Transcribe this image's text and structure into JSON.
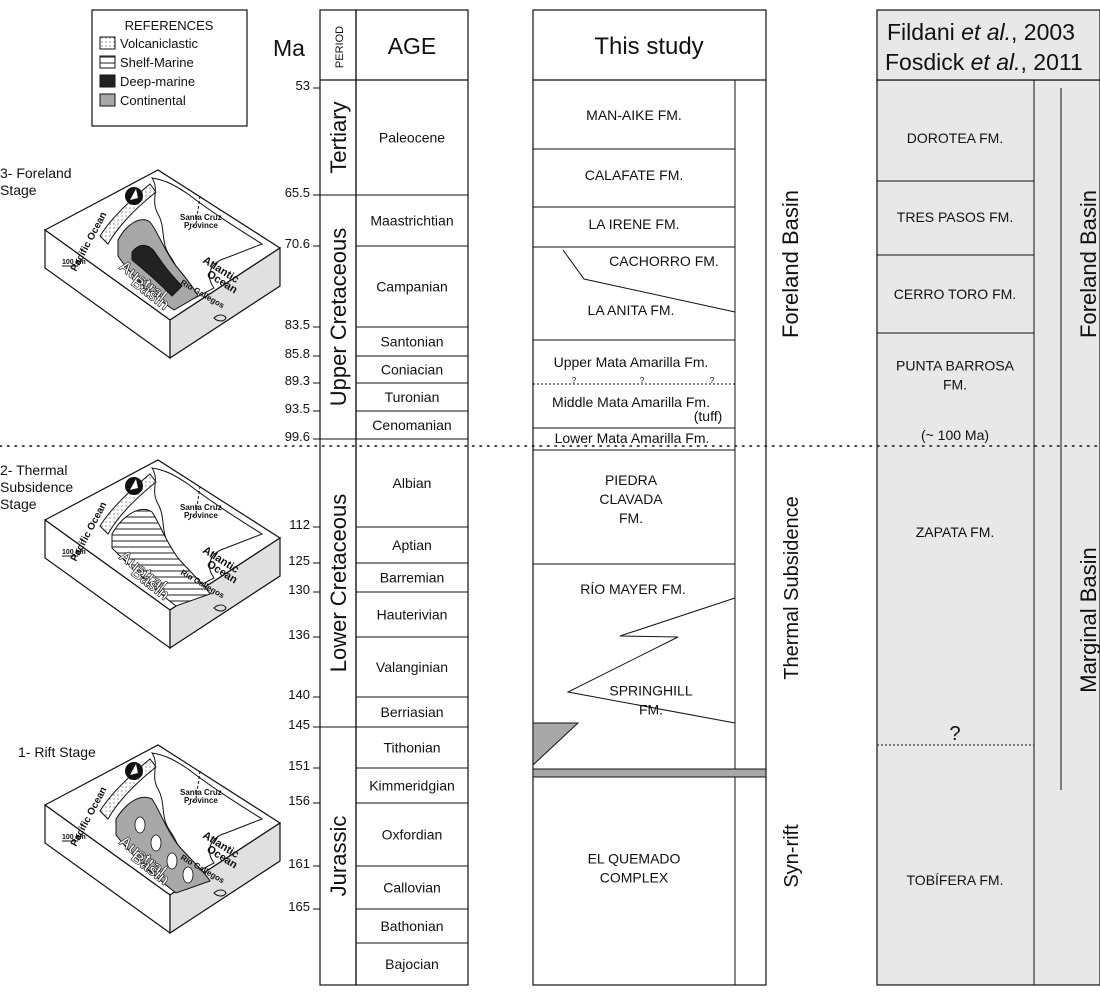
{
  "references": {
    "title": "REFERENCES",
    "items": [
      {
        "label": "Volcaniclastic",
        "key": "volcaniclastic"
      },
      {
        "label": "Shelf-Marine",
        "key": "shelf"
      },
      {
        "label": "Deep-marine",
        "key": "deep"
      },
      {
        "label": "Continental",
        "key": "continental"
      }
    ]
  },
  "stages": [
    {
      "label_lines": [
        "3- Foreland",
        "Stage"
      ],
      "pattern": "foreland"
    },
    {
      "label_lines": [
        "2- Thermal",
        "Subsidence",
        "Stage"
      ],
      "pattern": "thermal"
    },
    {
      "label_lines": [
        "1- Rift Stage"
      ],
      "pattern": "rift"
    }
  ],
  "map_labels": {
    "pacific": "Pacific Ocean",
    "atlantic_1": "Atlantic",
    "atlantic_2": "Ocean",
    "santa_cruz_1": "Santa Cruz",
    "santa_cruz_2": "Province",
    "rio_gallegos": "Río Gallegos",
    "austral_1": "Austral",
    "austral_2": "Basin",
    "scale": "100 km"
  },
  "column_headers": {
    "ma": "Ma",
    "period": "PERIOD",
    "age": "AGE",
    "this_study": "This study",
    "ref_line1_a": "Fildani ",
    "ref_line1_b": "et al.",
    "ref_line1_c": ", 2003",
    "ref_line2_a": "Fosdick ",
    "ref_line2_b": "et al.",
    "ref_line2_c": ", 2011"
  },
  "ma_ticks": [
    {
      "label": "53",
      "ma": 53
    },
    {
      "label": "65.5",
      "ma": 65.5
    },
    {
      "label": "70.6",
      "ma": 70.6
    },
    {
      "label": "83.5",
      "ma": 83.5
    },
    {
      "label": "85.8",
      "ma": 85.8
    },
    {
      "label": "89.3",
      "ma": 89.3
    },
    {
      "label": "93.5",
      "ma": 93.5
    },
    {
      "label": "99.6",
      "ma": 99.6
    },
    {
      "label": "112",
      "ma": 112
    },
    {
      "label": "125",
      "ma": 125
    },
    {
      "label": "130",
      "ma": 130
    },
    {
      "label": "136",
      "ma": 136
    },
    {
      "label": "140",
      "ma": 140
    },
    {
      "label": "145",
      "ma": 145
    },
    {
      "label": "151",
      "ma": 151
    },
    {
      "label": "156",
      "ma": 156
    },
    {
      "label": "161",
      "ma": 161
    },
    {
      "label": "165",
      "ma": 165
    }
  ],
  "periods": [
    {
      "label": "Tertiary",
      "from": "Paleocene",
      "to": "Paleocene"
    },
    {
      "label": "Upper Cretaceous",
      "from": "Maastrichtian",
      "to": "Cenomanian"
    },
    {
      "label": "Lower Cretaceous",
      "from": "Albian",
      "to": "Berriasian"
    },
    {
      "label": "Jurassic",
      "from": "Tithonian",
      "to": "Bajocian"
    }
  ],
  "ages": [
    {
      "label": "Paleocene"
    },
    {
      "label": "Maastrichtian"
    },
    {
      "label": "Campanian"
    },
    {
      "label": "Santonian"
    },
    {
      "label": "Coniacian"
    },
    {
      "label": "Turonian"
    },
    {
      "label": "Cenomanian"
    },
    {
      "label": "Albian"
    },
    {
      "label": "Aptian"
    },
    {
      "label": "Barremian"
    },
    {
      "label": "Hauterivian"
    },
    {
      "label": "Valanginian"
    },
    {
      "label": "Berriasian"
    },
    {
      "label": "Tithonian"
    },
    {
      "label": "Kimmeridgian"
    },
    {
      "label": "Oxfordian"
    },
    {
      "label": "Callovian"
    },
    {
      "label": "Bathonian"
    },
    {
      "label": "Bajocian"
    }
  ],
  "this_study": {
    "formations": [
      {
        "lines": [
          "MAN-AIKE FM."
        ]
      },
      {
        "lines": [
          "CALAFATE FM."
        ]
      },
      {
        "lines": [
          "LA IRENE FM."
        ]
      },
      {
        "lines": [
          "CACHORRO FM."
        ]
      },
      {
        "lines": [
          "LA ANITA FM."
        ]
      },
      {
        "lines": [
          "Upper Mata Amarilla Fm."
        ]
      },
      {
        "lines": [
          "Middle Mata Amarilla Fm."
        ]
      },
      {
        "lines": [
          "(tuff)"
        ]
      },
      {
        "lines": [
          "Lower Mata Amarilla Fm."
        ]
      },
      {
        "lines": [
          "PIEDRA",
          "CLAVADA",
          "FM."
        ]
      },
      {
        "lines": [
          "RÍO MAYER FM."
        ]
      },
      {
        "lines": [
          "SPRINGHILL",
          "FM."
        ]
      },
      {
        "lines": [
          "EL QUEMADO",
          "COMPLEX"
        ]
      }
    ],
    "question_marks": [
      "?",
      "?",
      "?"
    ],
    "stage_labels": [
      "Foreland Basin",
      "Thermal Subsidence",
      "Syn-rift"
    ]
  },
  "fildani_fosdick": {
    "formations": [
      {
        "lines": [
          "DOROTEA FM."
        ]
      },
      {
        "lines": [
          "TRES PASOS FM."
        ]
      },
      {
        "lines": [
          "CERRO TORO FM."
        ]
      },
      {
        "lines": [
          "PUNTA BARROSA",
          "FM."
        ]
      },
      {
        "lines": [
          "(~ 100 Ma)"
        ]
      },
      {
        "lines": [
          "ZAPATA FM."
        ]
      },
      {
        "lines": [
          "?"
        ]
      },
      {
        "lines": [
          "TOBÍFERA FM."
        ]
      }
    ],
    "stage_labels": [
      "Foreland Basin",
      "Marginal Basin"
    ]
  },
  "colors": {
    "line": "#111111",
    "panel_fill": "#e8e8e8",
    "deep_marine": "#222222",
    "continental": "#a8a8a8",
    "shelf_stripe": "#555555",
    "block_side": "#d9d9d9"
  }
}
